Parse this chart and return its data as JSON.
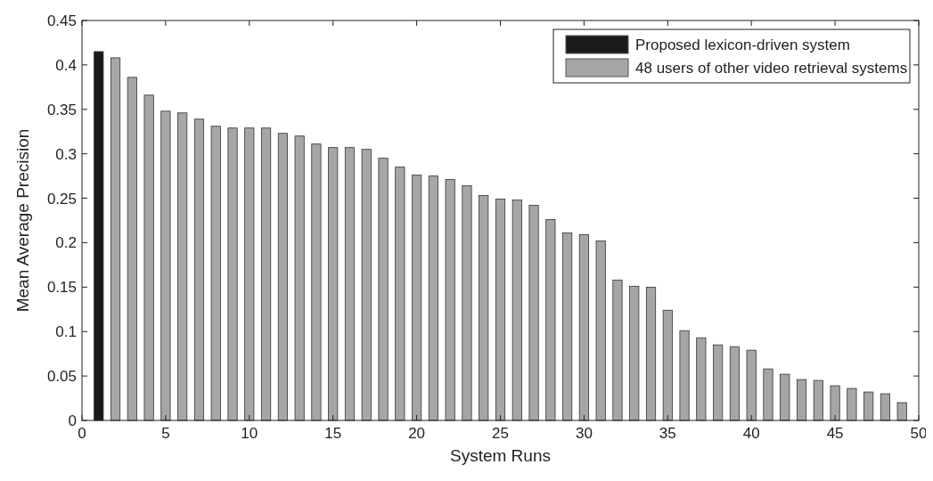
{
  "chart_data": {
    "type": "bar",
    "xlabel": "System Runs",
    "ylabel": "Mean Average Precision",
    "xlim": [
      0,
      50
    ],
    "xticks": [
      0,
      5,
      10,
      15,
      20,
      25,
      30,
      35,
      40,
      45,
      50
    ],
    "ylim": [
      0,
      0.45
    ],
    "yticks": [
      0,
      0.05,
      0.1,
      0.15,
      0.2,
      0.25,
      0.3,
      0.35,
      0.4,
      0.45
    ],
    "legend": "top right",
    "grid": false,
    "series": [
      {
        "name": "Proposed lexicon-driven system",
        "color": "#1a1a1a",
        "x": [
          1
        ],
        "values": [
          0.415
        ]
      },
      {
        "name": "48 users of other video retrieval systems",
        "color": "#a6a6a6",
        "x": [
          2,
          3,
          4,
          5,
          6,
          7,
          8,
          9,
          10,
          11,
          12,
          13,
          14,
          15,
          16,
          17,
          18,
          19,
          20,
          21,
          22,
          23,
          24,
          25,
          26,
          27,
          28,
          29,
          30,
          31,
          32,
          33,
          34,
          35,
          36,
          37,
          38,
          39,
          40,
          41,
          42,
          43,
          44,
          45,
          46,
          47,
          48,
          49
        ],
        "values": [
          0.408,
          0.386,
          0.366,
          0.348,
          0.346,
          0.339,
          0.331,
          0.329,
          0.329,
          0.329,
          0.323,
          0.32,
          0.311,
          0.307,
          0.307,
          0.305,
          0.295,
          0.285,
          0.276,
          0.275,
          0.271,
          0.264,
          0.253,
          0.249,
          0.248,
          0.242,
          0.226,
          0.211,
          0.209,
          0.202,
          0.158,
          0.151,
          0.15,
          0.124,
          0.101,
          0.093,
          0.085,
          0.083,
          0.079,
          0.058,
          0.052,
          0.046,
          0.045,
          0.039,
          0.036,
          0.032,
          0.03,
          0.02
        ]
      }
    ]
  }
}
